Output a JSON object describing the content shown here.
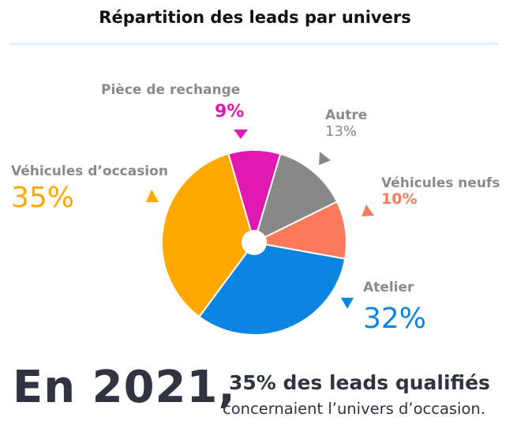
{
  "chart_data": {
    "type": "pie",
    "title": "Répartition des leads par univers",
    "slices": [
      {
        "name": "Pièce de rechange",
        "value": 9,
        "label": "9%",
        "color": "#e01ab0"
      },
      {
        "name": "Autre",
        "value": 13,
        "label": "13%",
        "color": "#888888"
      },
      {
        "name": "Véhicules neufs",
        "value": 10,
        "label": "10%",
        "color": "#fb7a5c"
      },
      {
        "name": "Atelier",
        "value": 32,
        "label": "32%",
        "color": "#0a86e0"
      },
      {
        "name": "Véhicules d’occasion",
        "value": 35,
        "label": "35%",
        "color": "#fea800"
      }
    ]
  },
  "footer": {
    "year_text": "En 2021,",
    "line1": "35% des leads qualifiés",
    "line2": "concernaient l’univers d’occasion."
  }
}
